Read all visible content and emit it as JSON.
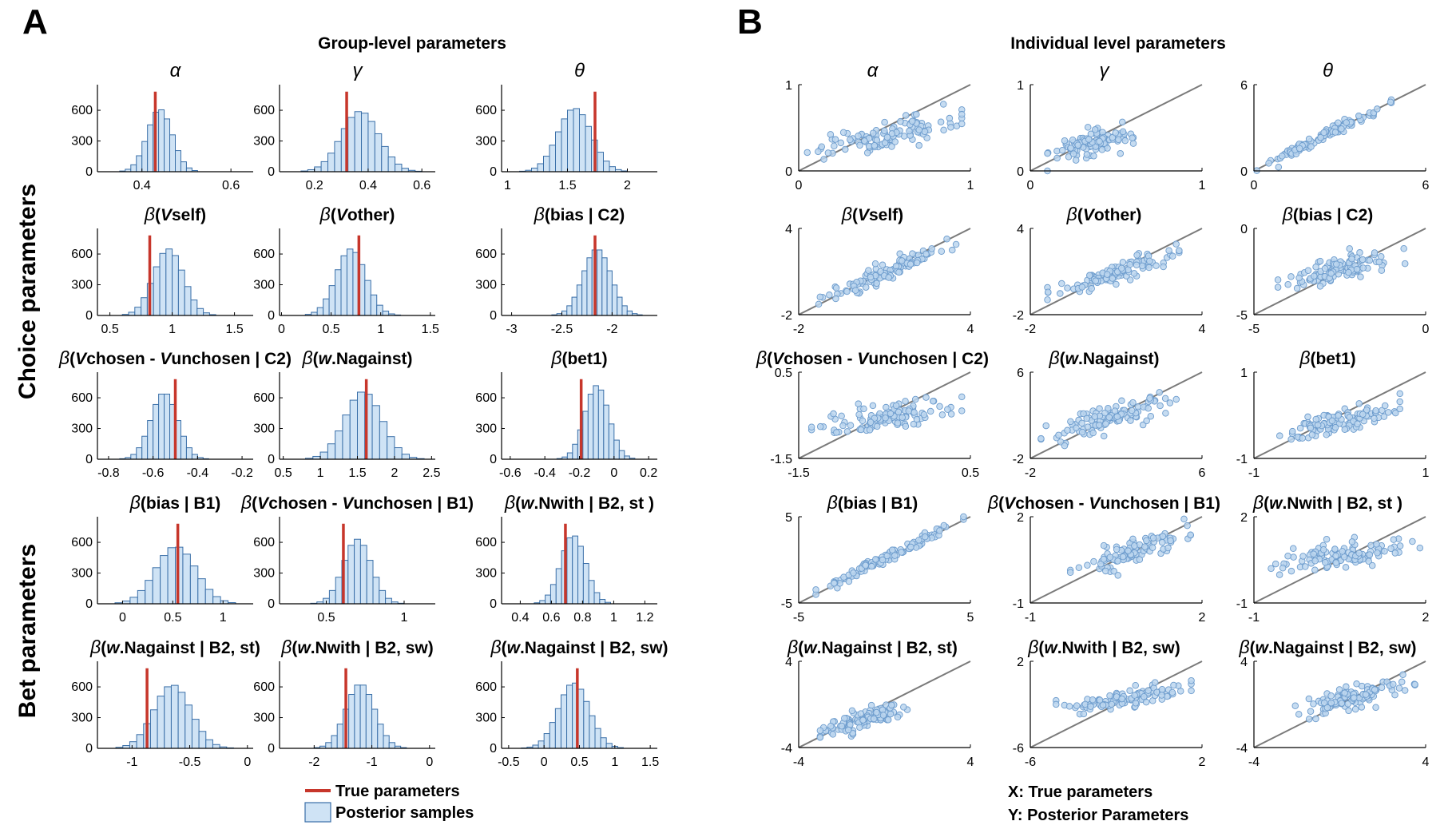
{
  "figure": {
    "panel_a_letter": "A",
    "panel_b_letter": "B",
    "panel_a_title": "Group-level parameters",
    "panel_b_title": "Individual level parameters",
    "row_label_choice": "Choice parameters",
    "row_label_bet": "Bet parameters",
    "legend": {
      "true_label": "True parameters",
      "posterior_label": "Posterior samples",
      "x_note": "X: True parameters",
      "y_note": "Y: Posterior Parameters"
    },
    "colors": {
      "bar_fill": "#cfe3f5",
      "bar_edge": "#3a6fa8",
      "true_line": "#c7362b",
      "point_fill": "#bcd6ee",
      "point_edge": "#6d9ccd",
      "identity_line": "#7a7a7a"
    }
  },
  "chart_data": [
    {
      "type": "bar",
      "panel": "A",
      "title": "α",
      "xlim": [
        0.3,
        0.65
      ],
      "ylim": [
        0,
        850
      ],
      "xticks": [
        "0.4",
        "0.6"
      ],
      "xtick_values": [
        0.4,
        0.6
      ],
      "yticks": [
        "0",
        "300",
        "600"
      ],
      "ytick_values": [
        0,
        300,
        600
      ],
      "true_value": 0.43,
      "mean": 0.44,
      "sd": 0.028,
      "bin_width": 0.0125,
      "peak": 610
    },
    {
      "type": "bar",
      "panel": "A",
      "title": "γ",
      "xlim": [
        0.07,
        0.65
      ],
      "ylim": [
        0,
        850
      ],
      "xticks": [
        "0.2",
        "0.4",
        "0.6"
      ],
      "xtick_values": [
        0.2,
        0.4,
        0.6
      ],
      "yticks": [
        "0",
        "300",
        "600"
      ],
      "ytick_values": [
        0,
        300,
        600
      ],
      "true_value": 0.32,
      "mean": 0.37,
      "sd": 0.07,
      "bin_width": 0.025,
      "peak": 590
    },
    {
      "type": "bar",
      "panel": "A",
      "title": "θ",
      "xlim": [
        0.95,
        2.25
      ],
      "ylim": [
        0,
        850
      ],
      "xticks": [
        "1",
        "1.5",
        "2"
      ],
      "xtick_values": [
        1,
        1.5,
        2
      ],
      "yticks": [
        "0",
        "300",
        "600"
      ],
      "ytick_values": [
        0,
        300,
        600
      ],
      "true_value": 1.73,
      "mean": 1.56,
      "sd": 0.14,
      "bin_width": 0.05,
      "peak": 620
    },
    {
      "type": "bar",
      "panel": "A",
      "title": "β(Vself)",
      "xlim": [
        0.4,
        1.65
      ],
      "ylim": [
        0,
        850
      ],
      "xticks": [
        "0.5",
        "1",
        "1.5"
      ],
      "xtick_values": [
        0.5,
        1,
        1.5
      ],
      "yticks": [
        "0",
        "300",
        "600"
      ],
      "ytick_values": [
        0,
        300,
        600
      ],
      "true_value": 0.82,
      "mean": 0.97,
      "sd": 0.12,
      "bin_width": 0.05,
      "peak": 650
    },
    {
      "type": "bar",
      "panel": "A",
      "title": "β(Vother)",
      "xlim": [
        -0.02,
        1.55
      ],
      "ylim": [
        0,
        850
      ],
      "xticks": [
        "0",
        "0.5",
        "1",
        "1.5"
      ],
      "xtick_values": [
        0,
        0.5,
        1,
        1.5
      ],
      "yticks": [
        "0",
        "300",
        "600"
      ],
      "ytick_values": [
        0,
        300,
        600
      ],
      "true_value": 0.78,
      "mean": 0.7,
      "sd": 0.15,
      "bin_width": 0.06,
      "peak": 650
    },
    {
      "type": "bar",
      "panel": "A",
      "title": "β(bias | C2)",
      "xlim": [
        -3.1,
        -1.55
      ],
      "ylim": [
        0,
        850
      ],
      "xticks": [
        "-3",
        "-2.5",
        "-2"
      ],
      "xtick_values": [
        -3,
        -2.5,
        -2
      ],
      "yticks": [
        "0",
        "300",
        "600"
      ],
      "ytick_values": [
        0,
        300,
        600
      ],
      "true_value": -2.17,
      "mean": -2.15,
      "sd": 0.14,
      "bin_width": 0.05,
      "peak": 650
    },
    {
      "type": "bar",
      "panel": "A",
      "title": "β(Vchosen - Vunchosen | C2)",
      "xlim": [
        -0.85,
        -0.15
      ],
      "ylim": [
        0,
        850
      ],
      "xticks": [
        "-0.8",
        "-0.6",
        "-0.4",
        "-0.2"
      ],
      "xtick_values": [
        -0.8,
        -0.6,
        -0.4,
        -0.2
      ],
      "yticks": [
        "0",
        "300",
        "600"
      ],
      "ytick_values": [
        0,
        300,
        600
      ],
      "true_value": -0.5,
      "mean": -0.55,
      "sd": 0.06,
      "bin_width": 0.025,
      "peak": 650
    },
    {
      "type": "bar",
      "panel": "A",
      "title": "β(w.Nagainst)",
      "xlim": [
        0.45,
        2.55
      ],
      "ylim": [
        0,
        850
      ],
      "xticks": [
        "0.5",
        "1",
        "1.5",
        "2",
        "2.5"
      ],
      "xtick_values": [
        0.5,
        1,
        1.5,
        2,
        2.5
      ],
      "yticks": [
        "0",
        "300",
        "600"
      ],
      "ytick_values": [
        0,
        300,
        600
      ],
      "true_value": 1.62,
      "mean": 1.58,
      "sd": 0.25,
      "bin_width": 0.1,
      "peak": 660
    },
    {
      "type": "bar",
      "panel": "A",
      "title": "β(bet1)",
      "xlim": [
        -0.65,
        0.25
      ],
      "ylim": [
        0,
        850
      ],
      "xticks": [
        "-0.6",
        "-0.4",
        "-0.2",
        "0",
        "0.2"
      ],
      "xtick_values": [
        -0.6,
        -0.4,
        -0.2,
        0,
        0.2
      ],
      "yticks": [
        "0",
        "300",
        "600"
      ],
      "ytick_values": [
        0,
        300,
        600
      ],
      "true_value": -0.19,
      "mean": -0.1,
      "sd": 0.07,
      "bin_width": 0.03,
      "peak": 720
    },
    {
      "type": "bar",
      "panel": "A",
      "title": "β(bias | B1)",
      "xlim": [
        -0.25,
        1.3
      ],
      "ylim": [
        0,
        850
      ],
      "xticks": [
        "0",
        "0.5",
        "1"
      ],
      "xtick_values": [
        0,
        0.5,
        1
      ],
      "yticks": [
        "0",
        "300",
        "600"
      ],
      "ytick_values": [
        0,
        300,
        600
      ],
      "true_value": 0.55,
      "mean": 0.53,
      "sd": 0.2,
      "bin_width": 0.075,
      "peak": 560
    },
    {
      "type": "bar",
      "panel": "A",
      "title": "β(Vchosen - Vunchosen | B1)",
      "xlim": [
        0.2,
        1.2
      ],
      "ylim": [
        0,
        850
      ],
      "xticks": [
        "0.5",
        "1"
      ],
      "xtick_values": [
        0.5,
        1
      ],
      "yticks": [
        "0",
        "300",
        "600"
      ],
      "ytick_values": [
        0,
        300,
        600
      ],
      "true_value": 0.61,
      "mean": 0.7,
      "sd": 0.09,
      "bin_width": 0.04,
      "peak": 630
    },
    {
      "type": "bar",
      "panel": "A",
      "title": "β(w.Nwith | B2, st )",
      "xlim": [
        0.28,
        1.28
      ],
      "ylim": [
        0,
        850
      ],
      "xticks": [
        "0.4",
        "0.6",
        "0.8",
        "1",
        "1.2"
      ],
      "xtick_values": [
        0.4,
        0.6,
        0.8,
        1,
        1.2
      ],
      "yticks": [
        "0",
        "300",
        "600"
      ],
      "ytick_values": [
        0,
        300,
        600
      ],
      "true_value": 0.69,
      "mean": 0.74,
      "sd": 0.08,
      "bin_width": 0.035,
      "peak": 670
    },
    {
      "type": "bar",
      "panel": "A",
      "title": "β(w.Nagainst | B2, st)",
      "xlim": [
        -1.3,
        0.05
      ],
      "ylim": [
        0,
        850
      ],
      "xticks": [
        "-1",
        "-0.5",
        "0"
      ],
      "xtick_values": [
        -1,
        -0.5,
        0
      ],
      "yticks": [
        "0",
        "300",
        "600"
      ],
      "ytick_values": [
        0,
        300,
        600
      ],
      "true_value": -0.87,
      "mean": -0.65,
      "sd": 0.16,
      "bin_width": 0.06,
      "peak": 620
    },
    {
      "type": "bar",
      "panel": "A",
      "title": "β(w.Nwith | B2, sw)",
      "xlim": [
        -2.6,
        0.1
      ],
      "ylim": [
        0,
        850
      ],
      "xticks": [
        "-2",
        "-1",
        "0"
      ],
      "xtick_values": [
        -2,
        -1,
        0
      ],
      "yticks": [
        "0",
        "300",
        "600"
      ],
      "ytick_values": [
        0,
        300,
        600
      ],
      "true_value": -1.45,
      "mean": -1.2,
      "sd": 0.25,
      "bin_width": 0.1,
      "peak": 630
    },
    {
      "type": "bar",
      "panel": "A",
      "title": "β(w.Nagainst | B2, sw)",
      "xlim": [
        -0.6,
        1.6
      ],
      "ylim": [
        0,
        850
      ],
      "xticks": [
        "-0.5",
        "0",
        "0.5",
        "1",
        "1.5"
      ],
      "xtick_values": [
        -0.5,
        0,
        0.5,
        1,
        1.5
      ],
      "yticks": [
        "0",
        "300",
        "600"
      ],
      "ytick_values": [
        0,
        300,
        600
      ],
      "true_value": 0.47,
      "mean": 0.42,
      "sd": 0.22,
      "bin_width": 0.08,
      "peak": 640
    },
    {
      "type": "scatter",
      "panel": "B",
      "title": "α",
      "xlim": [
        0,
        1
      ],
      "ylim": [
        0,
        1
      ],
      "xticks": [
        "0",
        "1"
      ],
      "xtick_values": [
        0,
        1
      ],
      "yticks": [
        "0",
        "1"
      ],
      "ytick_values": [
        0,
        1
      ],
      "x_range": [
        0.05,
        0.95
      ],
      "slope": 0.45,
      "intercept": 0.18,
      "noise": 0.08,
      "n": 110
    },
    {
      "type": "scatter",
      "panel": "B",
      "title": "γ",
      "xlim": [
        0,
        1
      ],
      "ylim": [
        0,
        1
      ],
      "xticks": [
        "0",
        "1"
      ],
      "xtick_values": [
        0,
        1
      ],
      "yticks": [
        "0",
        "1"
      ],
      "ytick_values": [
        0,
        1
      ],
      "x_range": [
        0.1,
        0.6
      ],
      "slope": 0.5,
      "intercept": 0.13,
      "noise": 0.07,
      "n": 110
    },
    {
      "type": "scatter",
      "panel": "B",
      "title": "θ",
      "xlim": [
        0,
        6
      ],
      "ylim": [
        0,
        6
      ],
      "xticks": [
        "0",
        "6"
      ],
      "xtick_values": [
        0,
        6
      ],
      "yticks": [
        "0",
        "6"
      ],
      "ytick_values": [
        0,
        6
      ],
      "x_range": [
        0.1,
        4.8
      ],
      "slope": 0.98,
      "intercept": 0.05,
      "noise": 0.18,
      "n": 110
    },
    {
      "type": "scatter",
      "panel": "B",
      "title": "β(Vself)",
      "xlim": [
        -2,
        4
      ],
      "ylim": [
        -2,
        4
      ],
      "xticks": [
        "-2",
        "4"
      ],
      "xtick_values": [
        -2,
        4
      ],
      "yticks": [
        "-2",
        "4"
      ],
      "ytick_values": [
        -2,
        4
      ],
      "x_range": [
        -1.3,
        3.5
      ],
      "slope": 0.82,
      "intercept": 0.1,
      "noise": 0.3,
      "n": 110
    },
    {
      "type": "scatter",
      "panel": "B",
      "title": "β(Vother)",
      "xlim": [
        -2,
        4
      ],
      "ylim": [
        -2,
        4
      ],
      "xticks": [
        "-2",
        "4"
      ],
      "xtick_values": [
        -2,
        4
      ],
      "yticks": [
        "-2",
        "4"
      ],
      "ytick_values": [
        -2,
        4
      ],
      "x_range": [
        -1.4,
        3.2
      ],
      "slope": 0.6,
      "intercept": 0.3,
      "noise": 0.35,
      "n": 110
    },
    {
      "type": "scatter",
      "panel": "B",
      "title": "β(bias | C2)",
      "xlim": [
        -5,
        0
      ],
      "ylim": [
        -5,
        0
      ],
      "xticks": [
        "-5",
        "0"
      ],
      "xtick_values": [
        -5,
        0
      ],
      "yticks": [
        "-5",
        "0"
      ],
      "ytick_values": [
        -5,
        0
      ],
      "x_range": [
        -4.3,
        -0.6
      ],
      "slope": 0.45,
      "intercept": -1.2,
      "noise": 0.35,
      "n": 110
    },
    {
      "type": "scatter",
      "panel": "B",
      "title": "β(Vchosen - Vunchosen | C2)",
      "xlim": [
        -1.5,
        0.5
      ],
      "ylim": [
        -1.5,
        0.5
      ],
      "xticks": [
        "-1.5",
        "0.5"
      ],
      "xtick_values": [
        -1.5,
        0.5
      ],
      "yticks": [
        "-1.5",
        "0.5"
      ],
      "ytick_values": [
        -1.5,
        0.5
      ],
      "x_range": [
        -1.35,
        0.4
      ],
      "slope": 0.3,
      "intercept": -0.4,
      "noise": 0.17,
      "n": 110
    },
    {
      "type": "scatter",
      "panel": "B",
      "title": "β(w.Nagainst)",
      "xlim": [
        -2,
        6
      ],
      "ylim": [
        -2,
        6
      ],
      "xticks": [
        "-2",
        "6"
      ],
      "xtick_values": [
        -2,
        6
      ],
      "yticks": [
        "-2",
        "6"
      ],
      "ytick_values": [
        -2,
        6
      ],
      "x_range": [
        -1.5,
        4.8
      ],
      "slope": 0.55,
      "intercept": 0.8,
      "noise": 0.6,
      "n": 110
    },
    {
      "type": "scatter",
      "panel": "B",
      "title": "β(bet1)",
      "xlim": [
        -1,
        1
      ],
      "ylim": [
        -1,
        1
      ],
      "xticks": [
        "-1",
        "1"
      ],
      "xtick_values": [
        -1,
        1
      ],
      "yticks": [
        "-1",
        "1"
      ],
      "ytick_values": [
        -1,
        1
      ],
      "x_range": [
        -0.7,
        0.7
      ],
      "slope": 0.45,
      "intercept": -0.15,
      "noise": 0.14,
      "n": 110
    },
    {
      "type": "scatter",
      "panel": "B",
      "title": "β(bias | B1)",
      "xlim": [
        -5,
        5
      ],
      "ylim": [
        -5,
        5
      ],
      "xticks": [
        "-5",
        "5"
      ],
      "xtick_values": [
        -5,
        5
      ],
      "yticks": [
        "-5",
        "5"
      ],
      "ytick_values": [
        -5,
        5
      ],
      "x_range": [
        -4,
        4.6
      ],
      "slope": 0.97,
      "intercept": 0.1,
      "noise": 0.3,
      "n": 110
    },
    {
      "type": "scatter",
      "panel": "B",
      "title": "β(Vchosen - Vunchosen | B1)",
      "xlim": [
        -1,
        2
      ],
      "ylim": [
        -1,
        2
      ],
      "xticks": [
        "-1",
        "2"
      ],
      "xtick_values": [
        -1,
        2
      ],
      "yticks": [
        "-1",
        "2"
      ],
      "ytick_values": [
        -1,
        2
      ],
      "x_range": [
        -0.3,
        1.8
      ],
      "slope": 0.6,
      "intercept": 0.3,
      "noise": 0.2,
      "n": 110
    },
    {
      "type": "scatter",
      "panel": "B",
      "title": "β(w.Nwith | B2, st )",
      "xlim": [
        -1,
        2
      ],
      "ylim": [
        -1,
        2
      ],
      "xticks": [
        "-1",
        "2"
      ],
      "xtick_values": [
        -1,
        2
      ],
      "yticks": [
        "-1",
        "2"
      ],
      "ytick_values": [
        -1,
        2
      ],
      "x_range": [
        -0.7,
        1.9
      ],
      "slope": 0.3,
      "intercept": 0.5,
      "noise": 0.22,
      "n": 110
    },
    {
      "type": "scatter",
      "panel": "B",
      "title": "β(w.Nagainst | B2, st)",
      "xlim": [
        -4,
        4
      ],
      "ylim": [
        -4,
        4
      ],
      "xticks": [
        "-4",
        "4"
      ],
      "xtick_values": [
        -4,
        4
      ],
      "yticks": [
        "-4",
        "4"
      ],
      "ytick_values": [
        -4,
        4
      ],
      "x_range": [
        -3,
        1.2
      ],
      "slope": 0.6,
      "intercept": -0.9,
      "noise": 0.4,
      "n": 110
    },
    {
      "type": "scatter",
      "panel": "B",
      "title": "β(w.Nwith | B2, sw)",
      "xlim": [
        -6,
        2
      ],
      "ylim": [
        -6,
        2
      ],
      "xticks": [
        "-6",
        "2"
      ],
      "xtick_values": [
        -6,
        2
      ],
      "yticks": [
        "-6",
        "2"
      ],
      "ytick_values": [
        -6,
        2
      ],
      "x_range": [
        -4.8,
        1.5
      ],
      "slope": 0.35,
      "intercept": -0.9,
      "noise": 0.45,
      "n": 110
    },
    {
      "type": "scatter",
      "panel": "B",
      "title": "β(w.Nagainst | B2, sw)",
      "xlim": [
        -4,
        4
      ],
      "ylim": [
        -4,
        4
      ],
      "xticks": [
        "-4",
        "4"
      ],
      "xtick_values": [
        -4,
        4
      ],
      "yticks": [
        "-4",
        "4"
      ],
      "ytick_values": [
        -4,
        4
      ],
      "x_range": [
        -2.2,
        3.5
      ],
      "slope": 0.55,
      "intercept": 0.3,
      "noise": 0.5,
      "n": 110
    }
  ]
}
